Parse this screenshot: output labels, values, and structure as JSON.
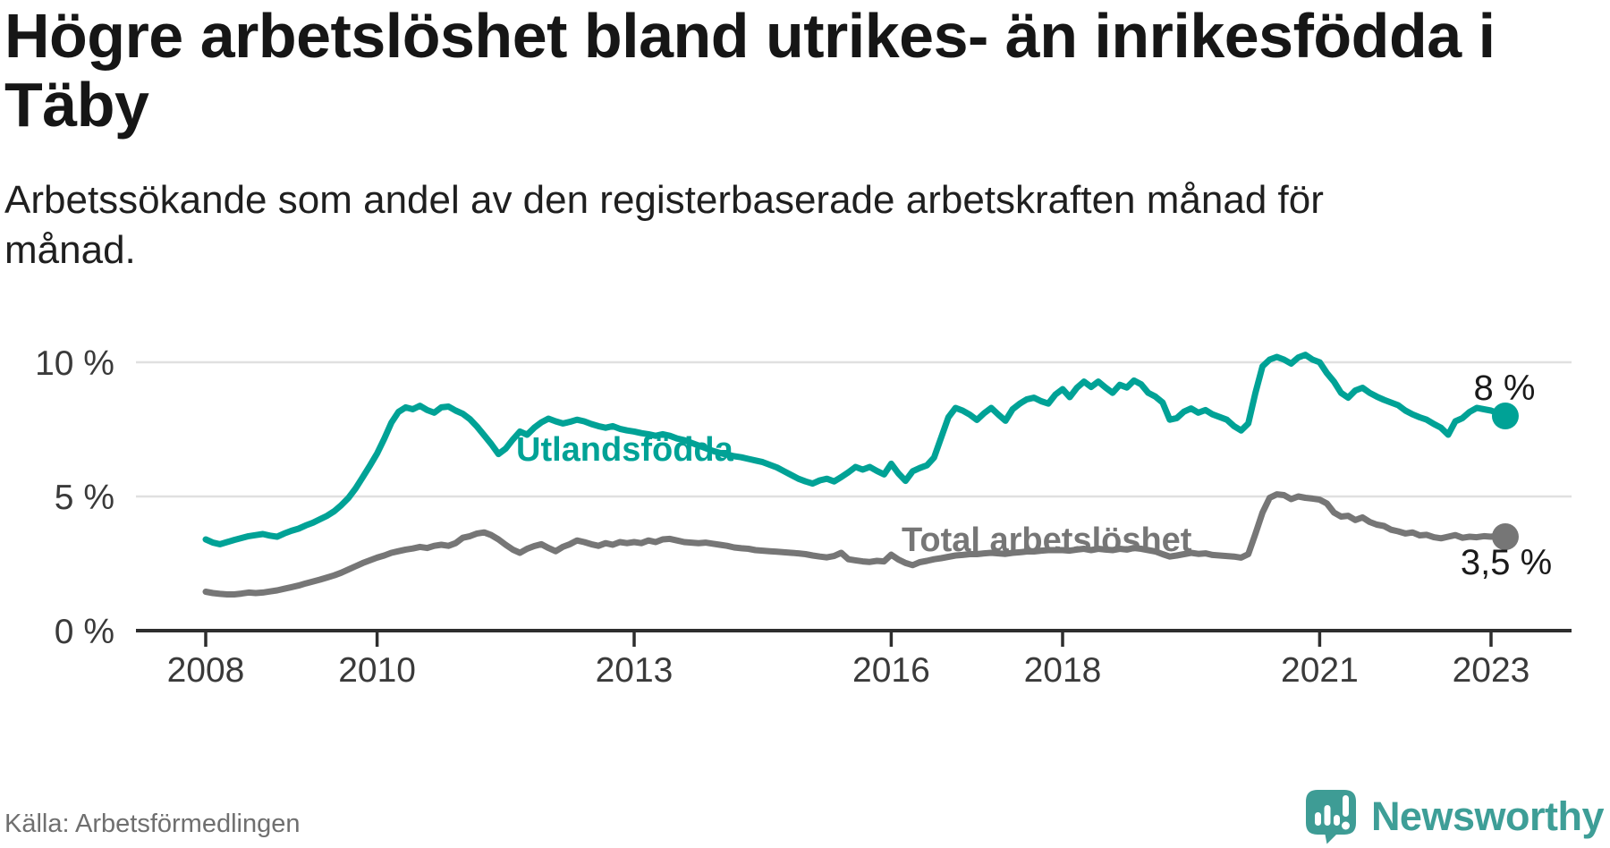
{
  "title_lines": [
    "Högre arbetslöshet bland utrikes- än inrikesfödda i",
    "Täby"
  ],
  "subtitle_lines": [
    "Arbetssökande som andel av den registerbaserade arbetskraften månad för",
    "månad."
  ],
  "source": "Källa: Arbetsförmedlingen",
  "branding": {
    "name": "Newsworthy",
    "icon": "newsworthy-speech-bubble-bar-chart-icon",
    "color": "#3E9E97"
  },
  "colors": {
    "foreign_born_line": "#00A296",
    "total_line": "#767676",
    "grid": "#E0E0E0",
    "axis": "#2E2E2E",
    "tick_text": "#3A3A3A",
    "end_label_text": "#1A1A1A"
  },
  "chart_data": {
    "type": "line",
    "x_unit": "month",
    "x_start": "2008-01",
    "x_end": "2023-03",
    "x_tick_years": [
      2008,
      2010,
      2013,
      2016,
      2018,
      2021,
      2023
    ],
    "x_tick_labels": [
      "2008",
      "2010",
      "2013",
      "2016",
      "2018",
      "2021",
      "2023"
    ],
    "y_ticks": [
      {
        "value": 0,
        "label": "0 %"
      },
      {
        "value": 5,
        "label": "5 %"
      },
      {
        "value": 10,
        "label": "10 %"
      }
    ],
    "ylim": [
      0,
      10.5
    ],
    "grid": "horizontal-only",
    "legend_position": "inline-labels",
    "series": [
      {
        "name": "Utlandsfödda",
        "color": "#00A296",
        "end_label": "8 %",
        "last_value": 8.0,
        "values": [
          3.4,
          3.28,
          3.22,
          3.3,
          3.38,
          3.45,
          3.52,
          3.56,
          3.6,
          3.54,
          3.5,
          3.62,
          3.72,
          3.8,
          3.92,
          4.02,
          4.15,
          4.28,
          4.45,
          4.68,
          4.95,
          5.3,
          5.72,
          6.15,
          6.6,
          7.15,
          7.75,
          8.15,
          8.32,
          8.25,
          8.38,
          8.22,
          8.12,
          8.32,
          8.35,
          8.2,
          8.08,
          7.88,
          7.6,
          7.28,
          6.95,
          6.58,
          6.78,
          7.12,
          7.42,
          7.3,
          7.56,
          7.76,
          7.9,
          7.8,
          7.72,
          7.78,
          7.86,
          7.8,
          7.7,
          7.62,
          7.56,
          7.62,
          7.52,
          7.46,
          7.42,
          7.36,
          7.32,
          7.26,
          7.32,
          7.26,
          7.16,
          7.1,
          7.0,
          6.9,
          6.8,
          6.7,
          6.62,
          6.56,
          6.5,
          6.46,
          6.4,
          6.34,
          6.28,
          6.18,
          6.08,
          5.94,
          5.8,
          5.66,
          5.56,
          5.48,
          5.6,
          5.66,
          5.56,
          5.72,
          5.9,
          6.1,
          6.0,
          6.1,
          5.95,
          5.82,
          6.22,
          5.86,
          5.58,
          5.94,
          6.06,
          6.16,
          6.45,
          7.2,
          7.95,
          8.3,
          8.2,
          8.05,
          7.85,
          8.1,
          8.3,
          8.05,
          7.82,
          8.25,
          8.46,
          8.62,
          8.68,
          8.55,
          8.46,
          8.8,
          9.0,
          8.7,
          9.05,
          9.28,
          9.08,
          9.28,
          9.06,
          8.86,
          9.16,
          9.06,
          9.32,
          9.18,
          8.86,
          8.72,
          8.5,
          7.86,
          7.92,
          8.16,
          8.28,
          8.12,
          8.22,
          8.06,
          7.96,
          7.86,
          7.62,
          7.46,
          7.72,
          8.85,
          9.85,
          10.1,
          10.2,
          10.1,
          9.95,
          10.18,
          10.28,
          10.1,
          10.0,
          9.6,
          9.28,
          8.86,
          8.68,
          8.95,
          9.05,
          8.86,
          8.72,
          8.6,
          8.5,
          8.4,
          8.2,
          8.06,
          7.95,
          7.86,
          7.7,
          7.56,
          7.3,
          7.8,
          7.92,
          8.15,
          8.3,
          8.25,
          8.2,
          8.1,
          8.0
        ]
      },
      {
        "name": "Total arbetslöshet",
        "color": "#767676",
        "end_label": "3,5 %",
        "last_value": 3.5,
        "values": [
          1.45,
          1.4,
          1.37,
          1.35,
          1.35,
          1.38,
          1.42,
          1.4,
          1.42,
          1.46,
          1.5,
          1.56,
          1.62,
          1.68,
          1.76,
          1.83,
          1.9,
          1.98,
          2.06,
          2.16,
          2.28,
          2.4,
          2.52,
          2.62,
          2.72,
          2.8,
          2.9,
          2.96,
          3.02,
          3.06,
          3.12,
          3.08,
          3.16,
          3.2,
          3.16,
          3.26,
          3.46,
          3.52,
          3.62,
          3.66,
          3.56,
          3.4,
          3.2,
          3.02,
          2.9,
          3.05,
          3.15,
          3.22,
          3.08,
          2.96,
          3.12,
          3.22,
          3.36,
          3.3,
          3.22,
          3.16,
          3.26,
          3.2,
          3.3,
          3.26,
          3.3,
          3.26,
          3.36,
          3.3,
          3.4,
          3.42,
          3.36,
          3.3,
          3.28,
          3.26,
          3.28,
          3.24,
          3.2,
          3.16,
          3.1,
          3.07,
          3.05,
          3.0,
          2.98,
          2.96,
          2.94,
          2.92,
          2.9,
          2.88,
          2.85,
          2.8,
          2.76,
          2.73,
          2.78,
          2.9,
          2.66,
          2.62,
          2.58,
          2.56,
          2.6,
          2.58,
          2.83,
          2.65,
          2.52,
          2.44,
          2.55,
          2.6,
          2.66,
          2.7,
          2.75,
          2.8,
          2.82,
          2.85,
          2.85,
          2.88,
          2.9,
          2.88,
          2.86,
          2.9,
          2.92,
          2.95,
          2.95,
          2.98,
          3.0,
          3.0,
          3.0,
          2.98,
          3.02,
          3.05,
          3.0,
          3.05,
          3.02,
          3.0,
          3.05,
          3.02,
          3.08,
          3.05,
          3.0,
          2.95,
          2.85,
          2.76,
          2.8,
          2.85,
          2.9,
          2.86,
          2.88,
          2.82,
          2.8,
          2.78,
          2.76,
          2.72,
          2.85,
          3.6,
          4.4,
          4.95,
          5.08,
          5.05,
          4.9,
          5.0,
          4.95,
          4.92,
          4.88,
          4.74,
          4.4,
          4.25,
          4.28,
          4.12,
          4.22,
          4.05,
          3.95,
          3.9,
          3.76,
          3.7,
          3.62,
          3.66,
          3.55,
          3.57,
          3.48,
          3.44,
          3.5,
          3.56,
          3.46,
          3.5,
          3.48,
          3.52,
          3.5,
          3.54,
          3.5
        ]
      }
    ]
  }
}
